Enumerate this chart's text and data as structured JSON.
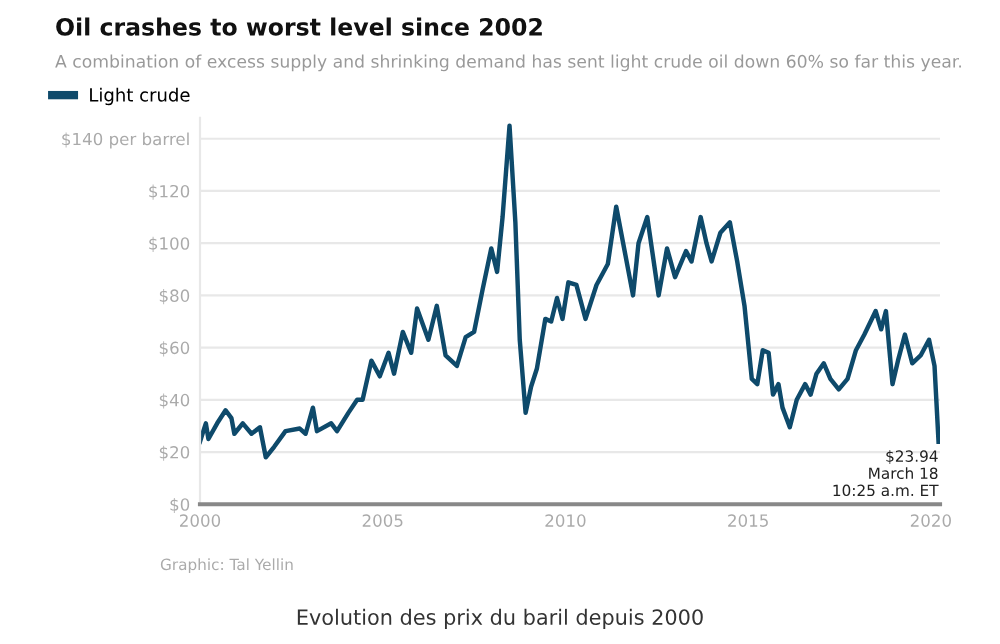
{
  "chart_data": {
    "type": "line",
    "title": "Oil crashes to worst level since 2002",
    "subtitle": "A combination of excess supply and shrinking demand has sent light crude oil down 60% so far this year.",
    "x": [
      2000.0,
      2000.16,
      2000.23,
      2000.47,
      2000.7,
      2000.86,
      2000.94,
      2001.17,
      2001.41,
      2001.64,
      2001.8,
      2002.03,
      2002.34,
      2002.73,
      2002.89,
      2003.09,
      2003.2,
      2003.59,
      2003.75,
      2004.06,
      2004.3,
      2004.45,
      2004.69,
      2004.92,
      2005.16,
      2005.31,
      2005.55,
      2005.78,
      2005.94,
      2006.25,
      2006.48,
      2006.72,
      2007.03,
      2007.27,
      2007.5,
      2007.73,
      2007.97,
      2008.13,
      2008.28,
      2008.47,
      2008.63,
      2008.75,
      2008.91,
      2009.06,
      2009.22,
      2009.45,
      2009.61,
      2009.77,
      2009.92,
      2010.08,
      2010.3,
      2010.55,
      2010.85,
      2011.16,
      2011.39,
      2011.62,
      2011.85,
      2012.0,
      2012.24,
      2012.55,
      2012.78,
      2013.0,
      2013.3,
      2013.45,
      2013.7,
      2013.86,
      2014.0,
      2014.24,
      2014.5,
      2014.7,
      2014.9,
      2015.1,
      2015.25,
      2015.4,
      2015.56,
      2015.68,
      2015.83,
      2015.94,
      2016.14,
      2016.33,
      2016.56,
      2016.71,
      2016.87,
      2017.07,
      2017.25,
      2017.48,
      2017.72,
      2017.95,
      2018.18,
      2018.49,
      2018.64,
      2018.77,
      2018.95,
      2019.1,
      2019.29,
      2019.49,
      2019.72,
      2019.95,
      2020.1,
      2020.21
    ],
    "series": [
      {
        "name": "Light crude",
        "color": "#0e4a6b",
        "values": [
          24,
          31,
          25,
          31,
          36,
          33,
          27,
          31,
          27,
          29.5,
          18,
          22,
          28,
          29,
          27,
          37,
          28,
          31,
          28,
          35,
          40,
          40,
          55,
          49,
          58,
          50,
          66,
          58,
          75,
          63,
          76,
          57,
          53,
          64,
          66,
          82,
          98,
          89,
          110,
          145,
          108,
          63,
          35,
          45,
          52,
          71,
          70,
          79,
          71,
          85,
          84,
          71,
          84,
          92,
          114,
          97,
          80,
          100,
          110,
          80,
          98,
          87,
          97,
          93,
          110,
          100,
          93,
          104,
          108,
          93,
          76,
          48,
          46,
          59,
          58,
          42,
          46,
          37,
          29.5,
          40,
          46,
          42,
          50,
          54,
          48,
          44,
          48,
          59,
          65,
          74,
          67,
          74,
          46,
          55,
          65,
          54,
          57,
          63,
          53,
          23.94
        ]
      }
    ],
    "xlim": [
      2000,
      2020.25
    ],
    "xticks": [
      2000,
      2005,
      2010,
      2015,
      2020
    ],
    "ylim": [
      0,
      148
    ],
    "yticks": [
      {
        "value": 0,
        "label": "$0"
      },
      {
        "value": 20,
        "label": "$20"
      },
      {
        "value": 40,
        "label": "$40"
      },
      {
        "value": 60,
        "label": "$60"
      },
      {
        "value": 80,
        "label": "$80"
      },
      {
        "value": 100,
        "label": "$100"
      },
      {
        "value": 120,
        "label": "$120"
      },
      {
        "value": 140,
        "label": "$140 per barrel"
      }
    ],
    "grid": "y",
    "legend": "top left",
    "line_style": "solid",
    "annotations": [
      {
        "text": "$23.94\nMarch 18\n10:25 a.m. ET",
        "x": 2020.21,
        "y": 23.94
      },
      "Graphic: Tal Yellin",
      "Evolution des prix du baril depuis 2000"
    ]
  }
}
